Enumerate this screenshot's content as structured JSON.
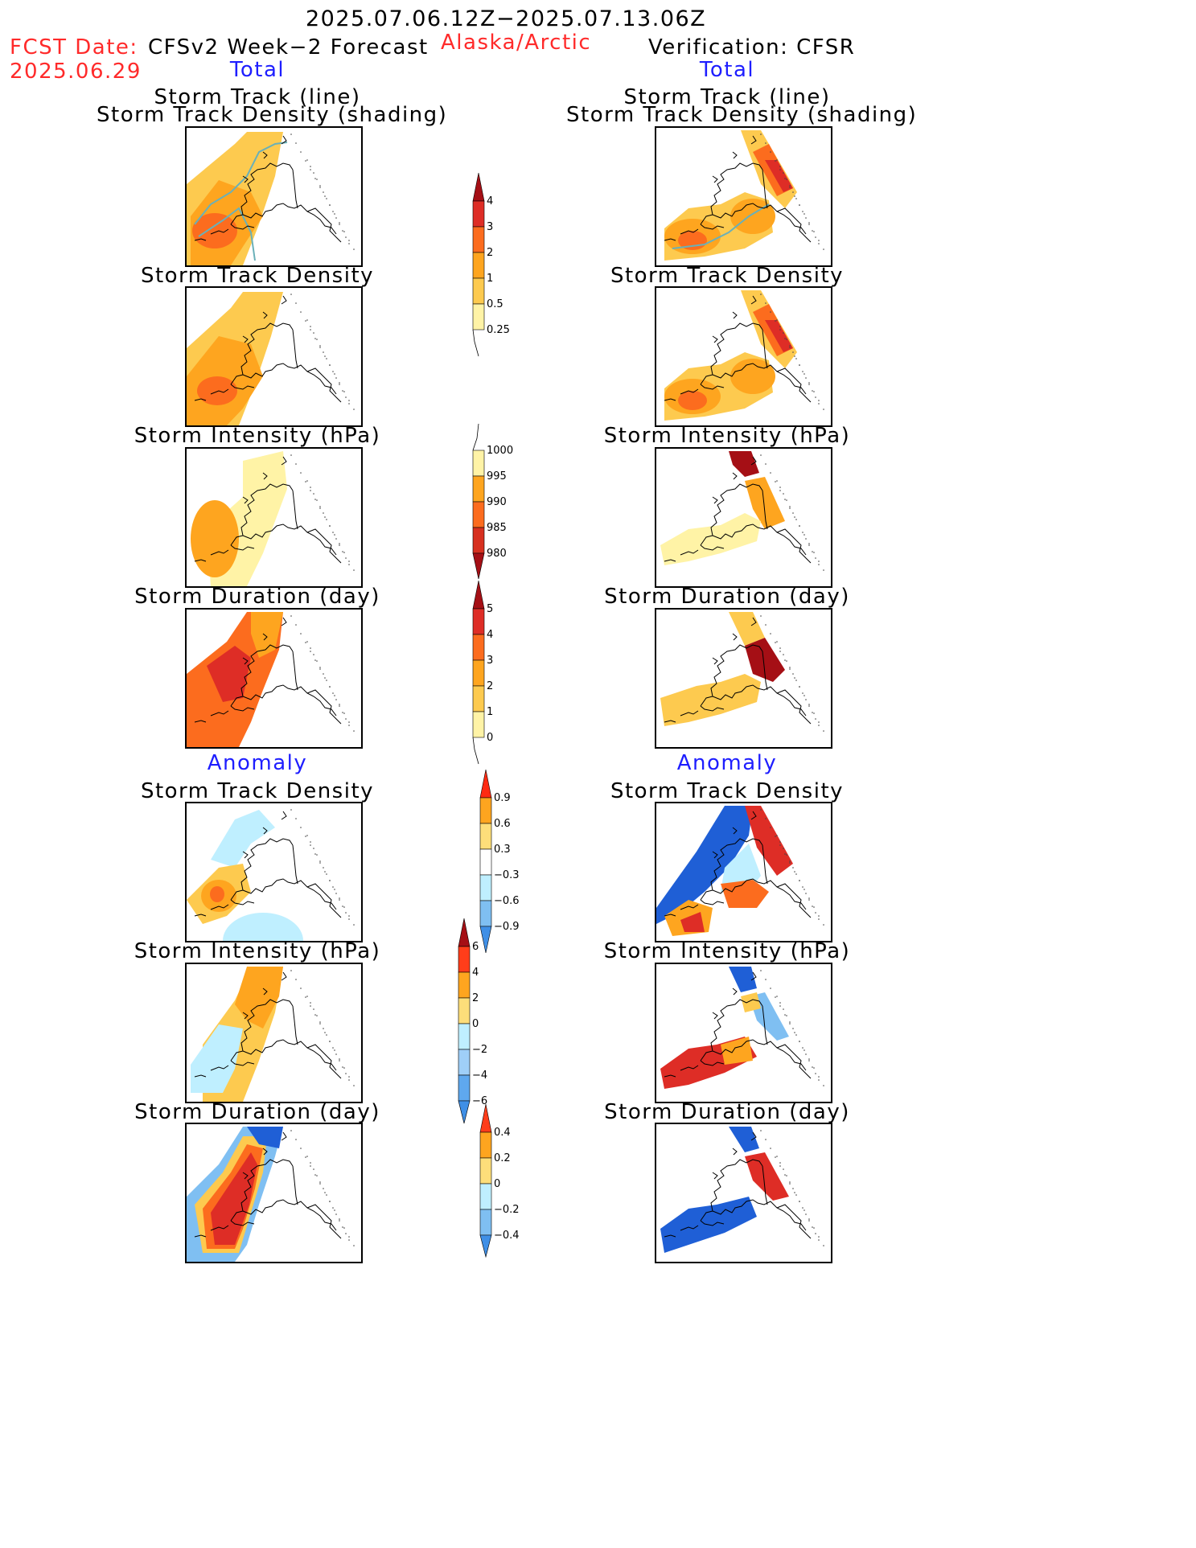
{
  "header": {
    "period": "2025.07.06.12Z−2025.07.13.06Z",
    "region": "Alaska/Arctic",
    "fcst_date_label": "FCST Date:",
    "fcst_date_value": "2025.06.29",
    "left_title": "CFSv2 Week−2 Forecast",
    "right_title": "Verification: CFSR",
    "left_section_total": "Total",
    "right_section_total": "Total",
    "left_section_anomaly": "Anomaly",
    "right_section_anomaly": "Anomaly"
  },
  "panel_titles": {
    "track_line_1": "Storm Track (line)",
    "track_line_2": "Storm Track Density (shading)",
    "density": "Storm Track Density",
    "intensity": "Storm Intensity (hPa)",
    "duration": "Storm Duration (day)"
  },
  "colorbars": {
    "density_total": {
      "labels": [
        "4",
        "3",
        "2",
        "1",
        "0.5",
        "0.25"
      ],
      "colors": [
        "#a50f15",
        "#de2d26",
        "#fc6c1e",
        "#fea51f",
        "#fdca4f",
        "#fff3a6"
      ]
    },
    "intensity_total": {
      "labels": [
        "1000",
        "995",
        "990",
        "985",
        "980"
      ],
      "colors": [
        "#fff3a6",
        "#fea51f",
        "#fc6c1e",
        "#d7301f",
        "#a50f15"
      ]
    },
    "duration_total": {
      "labels": [
        "5",
        "4",
        "3",
        "2",
        "1",
        "0"
      ],
      "colors": [
        "#a50f15",
        "#de2d26",
        "#fc6c1e",
        "#fea51f",
        "#fdca4f",
        "#fff3a6"
      ]
    },
    "density_anom": {
      "labels": [
        "0.9",
        "0.6",
        "0.3",
        "−0.3",
        "−0.6",
        "−0.9"
      ]
    },
    "intensity_anom": {
      "labels": [
        "6",
        "4",
        "2",
        "0",
        "−2",
        "−4",
        "−6"
      ]
    },
    "duration_anom": {
      "labels": [
        "0.4",
        "0.2",
        "0",
        "−0.2",
        "−0.4"
      ]
    }
  },
  "colors": {
    "title_red": "#ff2a2a",
    "title_blue": "#1e1eff",
    "light_yellow": "#fff3a6",
    "yellow": "#fdca4f",
    "orange": "#fea51f",
    "dark_orange": "#fc6c1e",
    "red": "#de2d26",
    "dark_red": "#a50f15",
    "light_blue": "#bfefff",
    "mid_blue": "#7fbff2",
    "blue": "#3f8fe6",
    "dark_blue": "#1f5fd6",
    "track_line": "#6ab0b8"
  }
}
